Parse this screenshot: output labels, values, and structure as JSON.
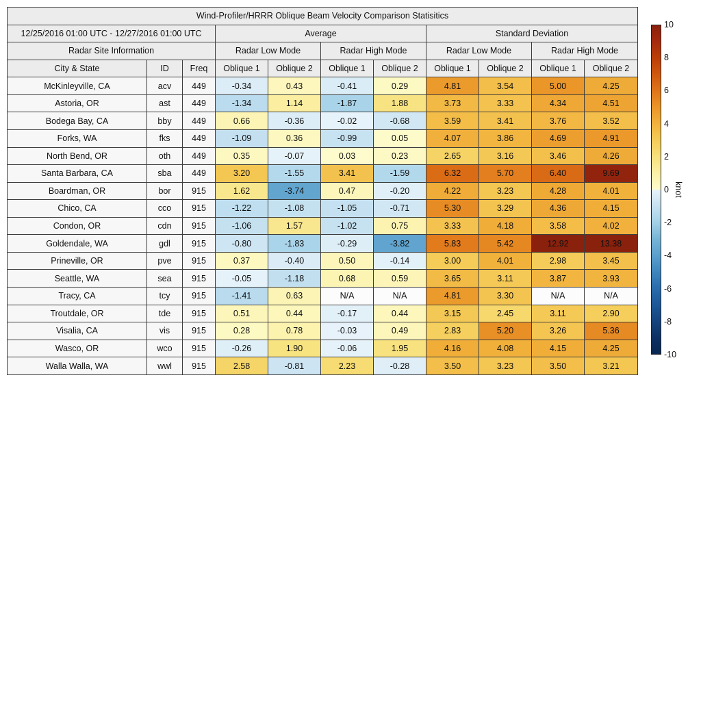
{
  "chart_data": {
    "type": "table",
    "title": "Wind-Profiler/HRRR Oblique Beam Velocity Comparison Statisitics",
    "period": "12/25/2016 01:00 UTC - 12/27/2016 01:00 UTC",
    "group_headers": [
      "Average",
      "Standard Deviation"
    ],
    "site_header": "Radar Site Information",
    "mode_headers": [
      "Radar Low Mode",
      "Radar High Mode",
      "Radar Low Mode",
      "Radar High Mode"
    ],
    "columns": [
      "City & State",
      "ID",
      "Freq",
      "Oblique 1",
      "Oblique 2",
      "Oblique 1",
      "Oblique 2",
      "Oblique 1",
      "Oblique 2",
      "Oblique 1",
      "Oblique 2"
    ],
    "rows": [
      {
        "city": "McKinleyville, CA",
        "id": "acv",
        "freq": "449",
        "values": [
          -0.34,
          0.43,
          -0.41,
          0.29,
          4.81,
          3.54,
          5.0,
          4.25
        ]
      },
      {
        "city": "Astoria, OR",
        "id": "ast",
        "freq": "449",
        "values": [
          -1.34,
          1.14,
          -1.87,
          1.88,
          3.73,
          3.33,
          4.34,
          4.51
        ]
      },
      {
        "city": "Bodega Bay, CA",
        "id": "bby",
        "freq": "449",
        "values": [
          0.66,
          -0.36,
          -0.02,
          -0.68,
          3.59,
          3.41,
          3.76,
          3.52
        ]
      },
      {
        "city": "Forks, WA",
        "id": "fks",
        "freq": "449",
        "values": [
          -1.09,
          0.36,
          -0.99,
          0.05,
          4.07,
          3.86,
          4.69,
          4.91
        ]
      },
      {
        "city": "North Bend, OR",
        "id": "oth",
        "freq": "449",
        "values": [
          0.35,
          -0.07,
          0.03,
          0.23,
          2.65,
          3.16,
          3.46,
          4.26
        ]
      },
      {
        "city": "Santa Barbara, CA",
        "id": "sba",
        "freq": "449",
        "values": [
          3.2,
          -1.55,
          3.41,
          -1.59,
          6.32,
          5.7,
          6.4,
          9.69
        ]
      },
      {
        "city": "Boardman, OR",
        "id": "bor",
        "freq": "915",
        "values": [
          1.62,
          -3.74,
          0.47,
          -0.2,
          4.22,
          3.23,
          4.28,
          4.01
        ]
      },
      {
        "city": "Chico, CA",
        "id": "cco",
        "freq": "915",
        "values": [
          -1.22,
          -1.08,
          -1.05,
          -0.71,
          5.3,
          3.29,
          4.36,
          4.15
        ]
      },
      {
        "city": "Condon, OR",
        "id": "cdn",
        "freq": "915",
        "values": [
          -1.06,
          1.57,
          -1.02,
          0.75,
          3.33,
          4.18,
          3.58,
          4.02
        ]
      },
      {
        "city": "Goldendale, WA",
        "id": "gdl",
        "freq": "915",
        "values": [
          -0.8,
          -1.83,
          -0.29,
          -3.82,
          5.83,
          5.42,
          12.92,
          13.38
        ]
      },
      {
        "city": "Prineville, OR",
        "id": "pve",
        "freq": "915",
        "values": [
          0.37,
          -0.4,
          0.5,
          -0.14,
          3.0,
          4.01,
          2.98,
          3.45
        ]
      },
      {
        "city": "Seattle, WA",
        "id": "sea",
        "freq": "915",
        "values": [
          -0.05,
          -1.18,
          0.68,
          0.59,
          3.65,
          3.11,
          3.87,
          3.93
        ]
      },
      {
        "city": "Tracy, CA",
        "id": "tcy",
        "freq": "915",
        "values": [
          -1.41,
          0.63,
          "N/A",
          "N/A",
          4.81,
          3.3,
          "N/A",
          "N/A"
        ]
      },
      {
        "city": "Troutdale, OR",
        "id": "tde",
        "freq": "915",
        "values": [
          0.51,
          0.44,
          -0.17,
          0.44,
          3.15,
          2.45,
          3.11,
          2.9
        ]
      },
      {
        "city": "Visalia, CA",
        "id": "vis",
        "freq": "915",
        "values": [
          0.28,
          0.78,
          -0.03,
          0.49,
          2.83,
          5.2,
          3.26,
          5.36
        ]
      },
      {
        "city": "Wasco, OR",
        "id": "wco",
        "freq": "915",
        "values": [
          -0.26,
          1.9,
          -0.06,
          1.95,
          4.16,
          4.08,
          4.15,
          4.25
        ]
      },
      {
        "city": "Walla Walla, WA",
        "id": "wwl",
        "freq": "915",
        "values": [
          2.58,
          -0.81,
          2.23,
          -0.28,
          3.5,
          3.23,
          3.5,
          3.21
        ]
      }
    ],
    "colorbar": {
      "label": "knot",
      "range": [
        -10,
        10
      ],
      "ticks": [
        10,
        8,
        6,
        4,
        2,
        0,
        -2,
        -4,
        -6,
        -8,
        -10
      ],
      "positive_anchor_colors": [
        "#fefccd",
        "#fbf0a7",
        "#f8e17d",
        "#f5cc58",
        "#f1b23c",
        "#ea9628",
        "#e0751a",
        "#cf590f",
        "#bc3e08",
        "#a52a0f",
        "#89210d"
      ],
      "negative_anchor_colors": [
        "#e8f3fa",
        "#c7e2f1",
        "#a4d1e7",
        "#77b5d6",
        "#5ba0cd",
        "#3e86bd",
        "#2a6cac",
        "#1d5898",
        "#15447e",
        "#0d3163",
        "#082652"
      ],
      "na_color": "#fcfcfc"
    }
  },
  "ui": {
    "header_bg": "#ececec",
    "site_bg": "#f7f7f7",
    "border_color": "#3d3d3d"
  }
}
